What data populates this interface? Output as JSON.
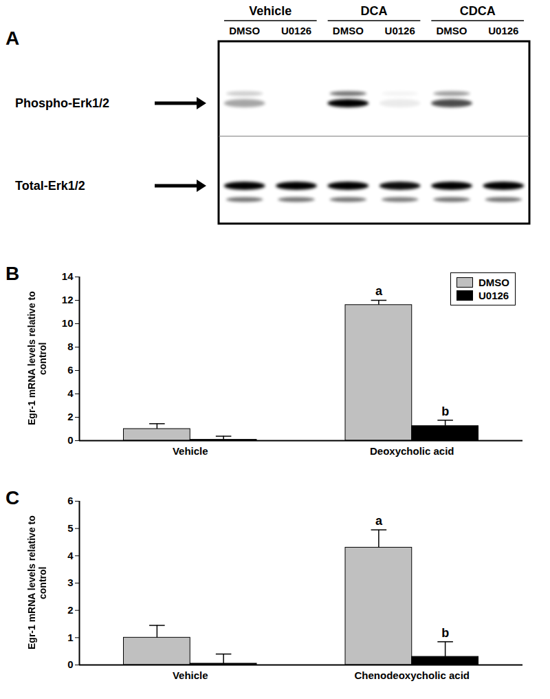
{
  "blot": {
    "panel": "A",
    "type": "western_blot",
    "lane_groups": [
      {
        "name": "Vehicle",
        "lanes": [
          "DMSO",
          "U0126"
        ]
      },
      {
        "name": "DCA",
        "lanes": [
          "DMSO",
          "U0126"
        ]
      },
      {
        "name": "CDCA",
        "lanes": [
          "DMSO",
          "U0126"
        ]
      }
    ],
    "rows": [
      {
        "label": "Phospho-Erk1/2",
        "intensity": [
          0.35,
          0,
          1,
          0.08,
          0.7,
          0
        ]
      },
      {
        "label": "Total-Erk1/2",
        "intensity": [
          1,
          1,
          1,
          0.95,
          1,
          1
        ]
      }
    ]
  },
  "chart_data": [
    {
      "panel": "B",
      "type": "bar",
      "ylabel": "Egr-1 mRNA levels relative to control",
      "categories": [
        "Vehicle",
        "Deoxycholic acid"
      ],
      "series": [
        {
          "name": "DMSO",
          "color": "#c0c0c0",
          "values": [
            1.0,
            11.6
          ],
          "errors": [
            0.45,
            0.4
          ],
          "annotations": [
            null,
            "a"
          ]
        },
        {
          "name": "U0126",
          "color": "#000000",
          "values": [
            0.08,
            1.25
          ],
          "errors": [
            0.3,
            0.5
          ],
          "annotations": [
            null,
            "b"
          ]
        }
      ],
      "ylim": [
        0,
        14
      ],
      "yticks": [
        0,
        2,
        4,
        6,
        8,
        10,
        12,
        14
      ],
      "legend": "top-right"
    },
    {
      "panel": "C",
      "type": "bar",
      "ylabel": "Egr-1 mRNA levels relative to control",
      "categories": [
        "Vehicle",
        "Chenodeoxycholic acid"
      ],
      "series": [
        {
          "name": "DMSO",
          "color": "#c0c0c0",
          "values": [
            1.0,
            4.3
          ],
          "errors": [
            0.45,
            0.65
          ],
          "annotations": [
            null,
            "a"
          ]
        },
        {
          "name": "U0126",
          "color": "#000000",
          "values": [
            0.05,
            0.3
          ],
          "errors": [
            0.35,
            0.55
          ],
          "annotations": [
            null,
            "b"
          ]
        }
      ],
      "ylim": [
        0,
        6
      ],
      "yticks": [
        0,
        1,
        2,
        3,
        4,
        5,
        6
      ]
    }
  ]
}
